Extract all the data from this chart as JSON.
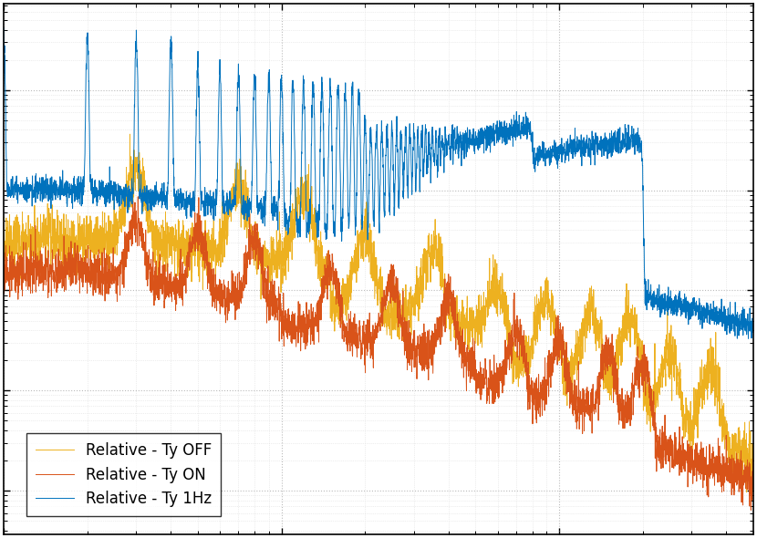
{
  "legend_labels": [
    "Relative - Ty 1Hz",
    "Relative - Ty ON",
    "Relative - Ty OFF"
  ],
  "line_colors": [
    "#0072BD",
    "#D95319",
    "#EDB120"
  ],
  "background_color": "#FFFFFF",
  "legend_loc": "lower left",
  "legend_fontsize": 12
}
